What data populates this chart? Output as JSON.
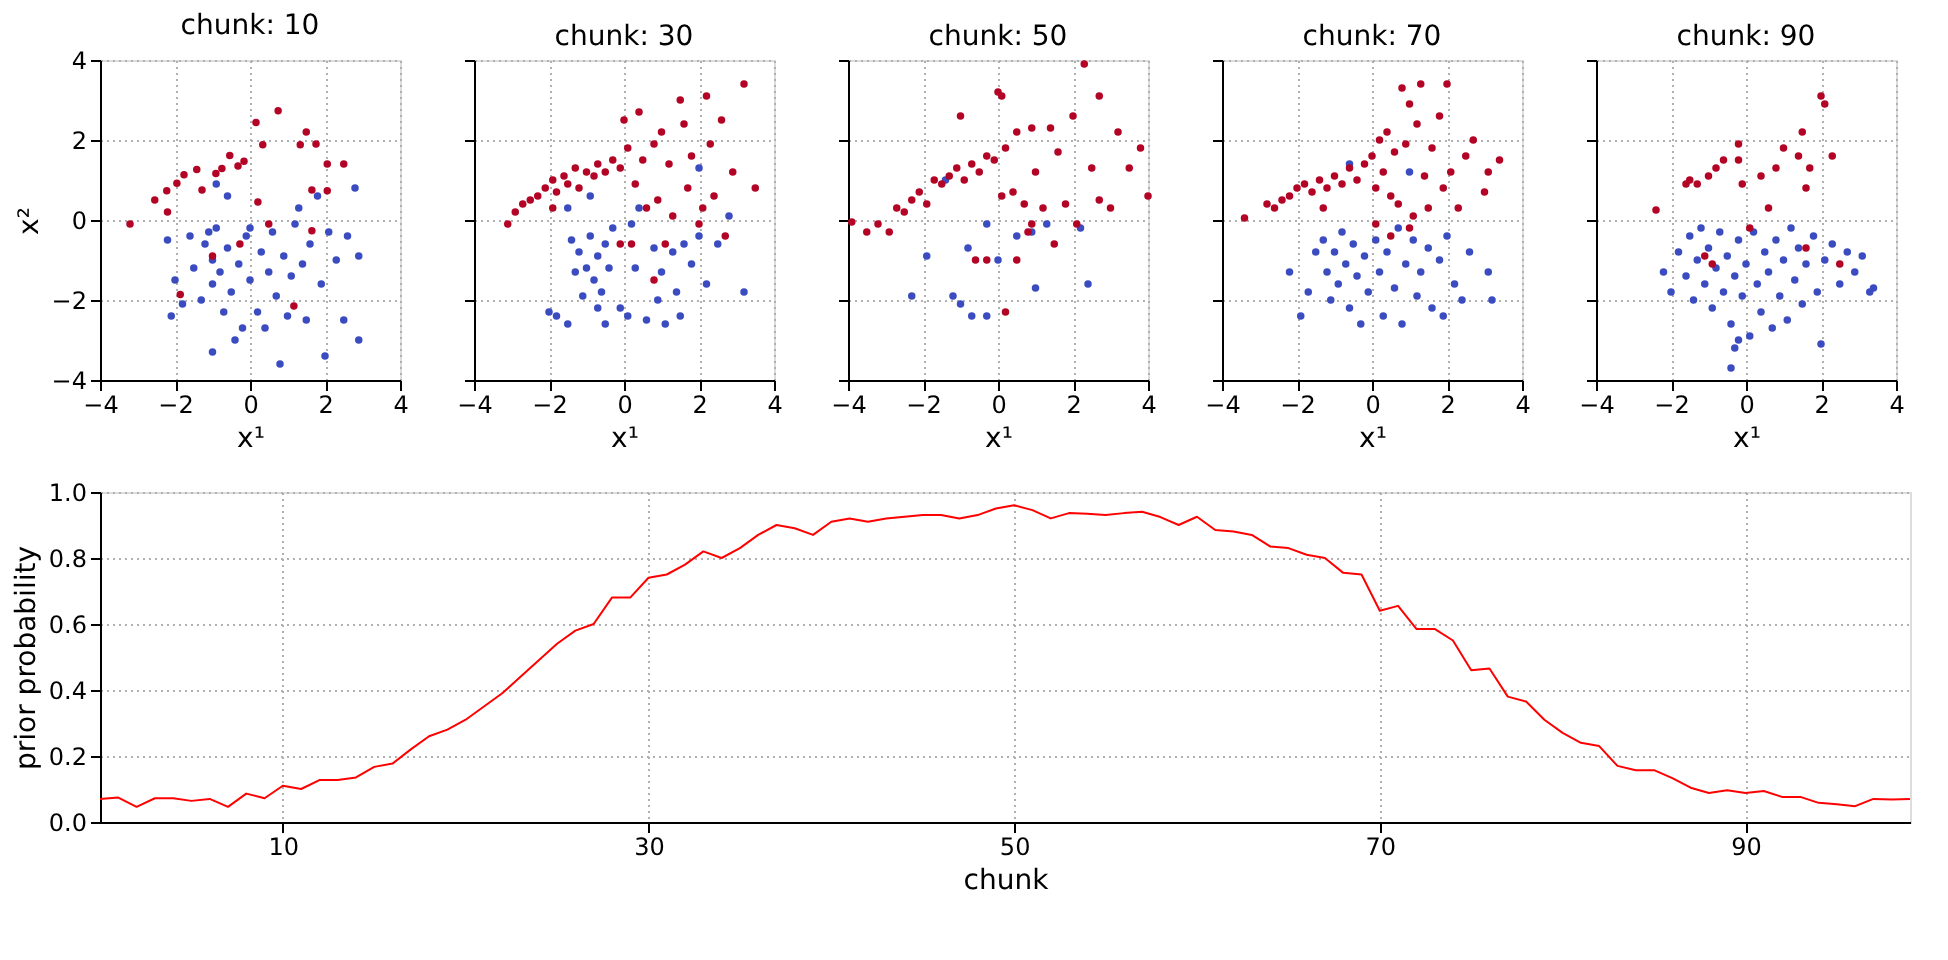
{
  "chart_data": [
    {
      "type": "scatter",
      "title": "chunk: 10",
      "xlabel": "x¹",
      "ylabel": "x²",
      "xlim": [
        -4,
        4
      ],
      "ylim": [
        -4,
        4
      ],
      "xticks": [
        -4,
        -2,
        0,
        2,
        4
      ],
      "yticks": [
        -4,
        -2,
        0,
        2,
        4
      ],
      "grid": true,
      "legend": false,
      "marker": "circle",
      "series": [
        {
          "color": "#3b4cc0",
          "x": [
            -2.2,
            -2,
            -1.8,
            -1.6,
            -1.5,
            -1.3,
            -1.2,
            -1,
            -1,
            -0.9,
            -0.8,
            -0.7,
            -0.6,
            -0.5,
            -0.4,
            -0.3,
            -0.2,
            -0.1,
            0,
            0.2,
            0.3,
            0.4,
            0.5,
            0.6,
            0.7,
            0.8,
            0.9,
            1,
            1.1,
            1.2,
            1.3,
            1.4,
            1.5,
            1.6,
            1.8,
            1.9,
            2,
            2.1,
            2.3,
            2.5,
            2.6,
            2.9,
            2.9,
            2.8,
            -1,
            -0.9,
            -0.6,
            0,
            -2.1,
            -1.1
          ],
          "values": [
            -0.5,
            -1.5,
            -2.1,
            -0.4,
            -1.2,
            -2,
            -0.6,
            -1,
            -1.6,
            -0.2,
            -1.3,
            -2.3,
            -0.7,
            -1.8,
            -3,
            -1.1,
            -2.7,
            -0.4,
            -1.5,
            -2.3,
            -0.8,
            -2.7,
            -1.3,
            -0.3,
            -1.9,
            -3.6,
            -0.9,
            -2.4,
            -1.4,
            -0.1,
            0.3,
            -1.1,
            -2.5,
            -0.6,
            0.6,
            -1.6,
            -3.4,
            -0.3,
            -1,
            -2.5,
            -0.4,
            -3,
            -0.9,
            0.8,
            -3.3,
            0.9,
            0.6,
            -0.2,
            -2.4,
            -0.3
          ]
        },
        {
          "color": "#b40426",
          "x": [
            -3.2,
            -2.54,
            -2.22,
            -2.2,
            -1.95,
            -1.76,
            -1.42,
            -1.28,
            -0.91,
            -0.75,
            -0.54,
            -0.32,
            -0.16,
            0.16,
            0.34,
            0.75,
            1.34,
            1.5,
            1.76,
            2.06,
            2.06,
            2.5,
            1.65,
            0.5,
            -1.0,
            -1.86,
            1.17,
            1.65,
            0.21,
            -0.27
          ],
          "values": [
            -0.1,
            0.5,
            0.73,
            0.2,
            0.92,
            1.13,
            1.26,
            0.75,
            1.16,
            1.29,
            1.61,
            1.35,
            1.47,
            2.44,
            1.88,
            2.73,
            1.88,
            2.2,
            1.9,
            1.4,
            0.73,
            1.4,
            0.75,
            -0.1,
            -0.9,
            -1.86,
            -2.15,
            -0.27,
            0.45,
            -0.6
          ]
        }
      ]
    },
    {
      "type": "scatter",
      "title": "chunk: 30",
      "xlabel": "x¹",
      "xlim": [
        -4,
        4
      ],
      "ylim": [
        -4,
        4
      ],
      "xticks": [
        -4,
        -2,
        0,
        2,
        4
      ],
      "yticks": [
        -4,
        -2,
        0,
        2,
        4
      ],
      "tick_labels": "x",
      "grid": true,
      "legend": false,
      "marker": "circle",
      "series": [
        {
          "color": "#3b4cc0",
          "x": [
            -1.5,
            -1.4,
            -1.3,
            -1.2,
            -1.1,
            -1,
            -0.9,
            -0.8,
            -0.7,
            -0.6,
            -0.5,
            -0.4,
            -0.3,
            -2.0,
            -1.8,
            -1.5,
            -0.7,
            -0.5,
            -0.1,
            0.1,
            0.3,
            0.4,
            0.6,
            0.8,
            0.9,
            1,
            1.1,
            1.3,
            1.4,
            1.5,
            1.6,
            1.8,
            2.0,
            2.0,
            2.2,
            2.5,
            2.8,
            3.2,
            -0.9,
            0.2
          ],
          "values": [
            0.3,
            -0.5,
            -1.3,
            -0.8,
            -1.9,
            -1.2,
            -0.4,
            -1.5,
            -0.9,
            -1.8,
            -0.6,
            -1.2,
            -0.2,
            -2.3,
            -2.4,
            -2.6,
            -2.2,
            -2.6,
            -2.2,
            -2.4,
            -1.2,
            0.3,
            -2.5,
            -0.7,
            -2.0,
            -1.3,
            -2.6,
            -0.8,
            -1.8,
            -2.4,
            -0.6,
            -1.1,
            1.3,
            -0.4,
            -1.6,
            -0.6,
            0.1,
            -1.8,
            0.6,
            -0.1
          ]
        },
        {
          "color": "#b40426",
          "x": [
            -3.1,
            -2.9,
            -2.7,
            -2.5,
            -2.3,
            -2.1,
            -1.9,
            -1.8,
            -1.6,
            -1.5,
            -1.3,
            -1.2,
            -1.0,
            -0.8,
            -0.7,
            -0.5,
            -0.3,
            -0.1,
            0,
            0.1,
            0.3,
            0.4,
            0.5,
            0.6,
            0.8,
            0.9,
            1,
            1.2,
            1.3,
            1.5,
            1.6,
            1.7,
            1.8,
            2,
            2.1,
            2.2,
            2.3,
            2.4,
            2.6,
            2.7,
            2.9,
            3.2,
            3.5,
            0.2,
            0.8,
            -0.1,
            1.1,
            -1.9
          ],
          "values": [
            -0.1,
            0.2,
            0.4,
            0.5,
            0.6,
            0.8,
            1.0,
            0.7,
            1.1,
            0.9,
            1.3,
            0.8,
            1.2,
            1.1,
            1.4,
            1.2,
            1.5,
            1.3,
            2.5,
            1.8,
            0.9,
            2.7,
            1.5,
            0.3,
            1.9,
            0.5,
            2.2,
            1.4,
            0.1,
            3.0,
            2.4,
            0.8,
            1.6,
            -0.1,
            0.3,
            3.1,
            1.9,
            0.6,
            2.5,
            -0.4,
            1.2,
            3.4,
            0.8,
            -0.6,
            -1.5,
            -0.6,
            -0.6,
            0.3
          ]
        }
      ]
    },
    {
      "type": "scatter",
      "title": "chunk: 50",
      "xlabel": "x¹",
      "xlim": [
        -4,
        4
      ],
      "ylim": [
        -4,
        4
      ],
      "xticks": [
        -4,
        -2,
        0,
        2,
        4
      ],
      "yticks": [
        -4,
        -2,
        0,
        2,
        4
      ],
      "tick_labels": "x",
      "grid": true,
      "legend": false,
      "marker": "circle",
      "series": [
        {
          "color": "#3b4cc0",
          "x": [
            -2.3,
            -1.9,
            -1.4,
            -0.8,
            -1.0,
            -0.7,
            -0.3,
            0.0,
            1.0,
            2.2,
            2.4,
            -0.3,
            0.9,
            -1.2,
            0.5,
            1.3
          ],
          "values": [
            -1.9,
            -0.9,
            1.0,
            -0.7,
            -2.1,
            -2.4,
            -0.1,
            -1.0,
            -1.7,
            -0.2,
            -1.6,
            -2.4,
            -0.3,
            -1.9,
            -0.4,
            -0.1
          ]
        },
        {
          "color": "#b40426",
          "x": [
            -3.9,
            -3.5,
            -3.2,
            -2.9,
            -2.7,
            -2.5,
            -2.3,
            -2.1,
            -1.9,
            -1.7,
            -1.5,
            -1.3,
            -1.1,
            -1.0,
            -0.9,
            -0.7,
            -0.5,
            -0.3,
            -0.1,
            0,
            0.1,
            0.2,
            0.4,
            0.5,
            0.7,
            0.8,
            0.9,
            1,
            1.2,
            1.4,
            1.5,
            1.6,
            1.8,
            2,
            2.1,
            2.3,
            2.5,
            2.7,
            2.7,
            3,
            3.2,
            3.5,
            3.8,
            4,
            -0.6,
            -0.3,
            0.5,
            0.9,
            0.2,
            0.1
          ],
          "values": [
            -0.05,
            -0.3,
            -0.1,
            -0.3,
            0.3,
            0.2,
            0.5,
            0.7,
            0.4,
            1.0,
            0.9,
            1.1,
            1.3,
            2.6,
            1.0,
            1.4,
            1.2,
            1.6,
            1.5,
            3.2,
            3.1,
            1.8,
            0.7,
            2.2,
            0.4,
            -0.3,
            2.3,
            1.2,
            0.3,
            2.3,
            -0.6,
            1.7,
            0.4,
            2.6,
            -0.1,
            3.9,
            1.3,
            0.5,
            3.1,
            0.3,
            2.2,
            1.3,
            1.8,
            0.6,
            -1.0,
            -1.0,
            -1.0,
            -0.1,
            -2.3,
            0.6
          ]
        }
      ]
    },
    {
      "type": "scatter",
      "title": "chunk: 70",
      "xlabel": "x¹",
      "xlim": [
        -4,
        4
      ],
      "ylim": [
        -4,
        4
      ],
      "xticks": [
        -4,
        -2,
        0,
        2,
        4
      ],
      "yticks": [
        -4,
        -2,
        0,
        2,
        4
      ],
      "tick_labels": "x",
      "grid": true,
      "legend": false,
      "marker": "circle",
      "series": [
        {
          "color": "#3b4cc0",
          "x": [
            -2.2,
            -1.9,
            -1.7,
            -1.5,
            -1.3,
            -1.2,
            -1.1,
            -1,
            -0.9,
            -0.8,
            -0.7,
            -0.6,
            -0.5,
            -0.4,
            -0.3,
            -0.2,
            -0.1,
            0.1,
            0.2,
            0.3,
            0.4,
            0.6,
            0.7,
            0.8,
            0.9,
            1,
            1.1,
            1.2,
            1.3,
            1.5,
            1.6,
            1.8,
            1.9,
            2.0,
            2.2,
            2.4,
            2.6,
            3.2,
            3.1,
            -0.6
          ],
          "values": [
            -1.3,
            -2.4,
            -1.8,
            -0.8,
            -0.5,
            -1.3,
            -2.0,
            -0.8,
            -1.6,
            -0.3,
            -1.1,
            -2.2,
            -0.6,
            -1.4,
            -2.6,
            -0.9,
            -1.8,
            -0.5,
            -1.3,
            -2.4,
            -0.8,
            -1.7,
            -0.2,
            -2.6,
            -1.1,
            1.2,
            -0.5,
            -1.9,
            -1.3,
            -0.7,
            -2.2,
            -1.0,
            -2.4,
            -0.4,
            -1.6,
            -2.0,
            -0.8,
            -2.0,
            -1.3,
            1.4
          ]
        },
        {
          "color": "#b40426",
          "x": [
            -3.4,
            -2.8,
            -2.6,
            -2.4,
            -2.2,
            -2.0,
            -1.8,
            -1.6,
            -1.4,
            -1.2,
            -1.0,
            -0.8,
            -0.6,
            -0.4,
            -0.2,
            0,
            0.1,
            0.2,
            0.3,
            0.4,
            0.5,
            0.6,
            0.7,
            0.8,
            0.9,
            1.0,
            1.1,
            1.2,
            1.3,
            1.4,
            1.5,
            1.6,
            1.8,
            1.9,
            2.0,
            2.1,
            2.3,
            2.5,
            2.7,
            3.0,
            3.1,
            3.4,
            0.1,
            0.5,
            1.0,
            -1.3
          ],
          "values": [
            0.05,
            0.4,
            0.3,
            0.5,
            0.6,
            0.8,
            0.9,
            0.7,
            1.0,
            0.8,
            1.1,
            0.9,
            1.3,
            1.0,
            1.4,
            1.6,
            0.8,
            2.0,
            1.2,
            2.2,
            0.6,
            1.7,
            0.4,
            3.3,
            1.9,
            2.9,
            0.1,
            2.4,
            3.4,
            1.1,
            0.3,
            1.8,
            2.6,
            0.8,
            3.4,
            1.2,
            0.3,
            1.6,
            2.0,
            0.7,
            1.2,
            1.5,
            -0.1,
            -0.4,
            -0.2,
            0.3
          ]
        }
      ]
    },
    {
      "type": "scatter",
      "title": "chunk: 90",
      "xlabel": "x¹",
      "xlim": [
        -4,
        4
      ],
      "ylim": [
        -4,
        4
      ],
      "xticks": [
        -4,
        -2,
        0,
        2,
        4
      ],
      "yticks": [
        -4,
        -2,
        0,
        2,
        4
      ],
      "tick_labels": "x",
      "grid": true,
      "legend": false,
      "marker": "circle",
      "series": [
        {
          "color": "#3b4cc0",
          "x": [
            -2.2,
            -2.0,
            -1.8,
            -1.6,
            -1.5,
            -1.4,
            -1.3,
            -1.2,
            -1.1,
            -1.0,
            -0.9,
            -0.8,
            -0.7,
            -0.6,
            -0.5,
            -0.4,
            -0.3,
            -0.3,
            -0.2,
            -0.1,
            0,
            0.1,
            0.2,
            0.3,
            0.4,
            0.5,
            0.6,
            0.7,
            0.8,
            0.9,
            1.0,
            1.1,
            1.2,
            1.3,
            1.4,
            1.5,
            1.6,
            1.8,
            1.9,
            2.0,
            2.1,
            2.3,
            2.5,
            2.7,
            2.9,
            3.1,
            3.3,
            3.4,
            -0.4,
            -0.2
          ],
          "values": [
            -1.3,
            -1.8,
            -0.8,
            -1.4,
            -0.4,
            -2.0,
            -1.0,
            -0.2,
            -1.6,
            -0.7,
            -2.2,
            -1.2,
            -0.3,
            -1.8,
            -0.9,
            -2.6,
            -1.4,
            -3.2,
            -0.5,
            -1.9,
            -1.1,
            -2.9,
            -0.3,
            -1.6,
            -2.3,
            -0.8,
            -1.3,
            -2.7,
            -0.5,
            -1.9,
            -1.0,
            -2.5,
            -0.2,
            -1.5,
            -0.7,
            -2.1,
            -1.1,
            -0.4,
            -1.8,
            -3.1,
            -1.0,
            -0.6,
            -1.6,
            -0.8,
            -1.3,
            -0.9,
            -1.8,
            -1.7,
            -3.7,
            -3.0
          ]
        },
        {
          "color": "#b40426",
          "x": [
            -2.4,
            -1.6,
            -1.5,
            -1.3,
            -1.0,
            -0.8,
            -0.6,
            -0.2,
            -0.2,
            0.4,
            0.8,
            1.0,
            1.4,
            1.5,
            1.6,
            1.7,
            2.0,
            2.1,
            2.3,
            -0.1,
            -0.9,
            -1.1,
            0.6,
            1.6,
            2.5,
            0.1
          ],
          "values": [
            0.25,
            0.9,
            1.0,
            0.9,
            1.1,
            1.3,
            1.5,
            1.5,
            1.9,
            1.1,
            1.3,
            1.8,
            1.6,
            2.2,
            0.8,
            1.3,
            3.1,
            2.9,
            1.6,
            0.9,
            -1.1,
            -0.9,
            0.3,
            -0.7,
            -1.1,
            -0.2
          ]
        }
      ]
    },
    {
      "type": "line",
      "xlabel": "chunk",
      "ylabel": "prior probability",
      "xlim": [
        0,
        99
      ],
      "ylim": [
        0,
        1
      ],
      "xticks": [
        10,
        30,
        50,
        70,
        90
      ],
      "yticks": [
        {
          "value": 0,
          "label": "0.0"
        },
        0.2,
        0.4,
        0.6,
        0.8,
        {
          "value": 1,
          "label": "1.0"
        }
      ],
      "grid": true,
      "legend": false,
      "marker": "none",
      "line_style": "solid",
      "series": [
        {
          "color": "#ff0000",
          "x": [
            0,
            1,
            2,
            3,
            4,
            5,
            6,
            7,
            8,
            9,
            10,
            11,
            12,
            13,
            14,
            15,
            16,
            17,
            18,
            19,
            20,
            21,
            22,
            23,
            24,
            25,
            26,
            27,
            28,
            29,
            30,
            31,
            32,
            33,
            34,
            35,
            36,
            37,
            38,
            39,
            40,
            41,
            42,
            43,
            44,
            45,
            46,
            47,
            48,
            49,
            50,
            51,
            52,
            53,
            54,
            55,
            56,
            57,
            58,
            59,
            60,
            61,
            62,
            63,
            64,
            65,
            66,
            67,
            68,
            69,
            70,
            71,
            72,
            73,
            74,
            75,
            76,
            77,
            78,
            79,
            80,
            81,
            82,
            83,
            84,
            85,
            86,
            87,
            88,
            89,
            90,
            91,
            92,
            93,
            94,
            95,
            96,
            97,
            98,
            99
          ],
          "values": [
            0.07,
            0.074,
            0.046,
            0.072,
            0.072,
            0.064,
            0.07,
            0.046,
            0.086,
            0.072,
            0.11,
            0.1,
            0.127,
            0.127,
            0.135,
            0.167,
            0.177,
            0.22,
            0.26,
            0.28,
            0.31,
            0.35,
            0.39,
            0.44,
            0.49,
            0.54,
            0.58,
            0.6,
            0.68,
            0.68,
            0.74,
            0.75,
            0.78,
            0.82,
            0.8,
            0.83,
            0.87,
            0.9,
            0.89,
            0.87,
            0.91,
            0.92,
            0.91,
            0.92,
            0.925,
            0.93,
            0.93,
            0.92,
            0.93,
            0.95,
            0.96,
            0.945,
            0.92,
            0.936,
            0.934,
            0.93,
            0.936,
            0.94,
            0.924,
            0.9,
            0.925,
            0.885,
            0.88,
            0.87,
            0.835,
            0.83,
            0.81,
            0.8,
            0.755,
            0.75,
            0.64,
            0.655,
            0.585,
            0.585,
            0.55,
            0.46,
            0.465,
            0.38,
            0.365,
            0.31,
            0.27,
            0.24,
            0.23,
            0.17,
            0.157,
            0.157,
            0.133,
            0.104,
            0.088,
            0.096,
            0.088,
            0.094,
            0.076,
            0.076,
            0.058,
            0.054,
            0.048,
            0.07,
            0.068,
            0.07
          ]
        }
      ]
    }
  ]
}
